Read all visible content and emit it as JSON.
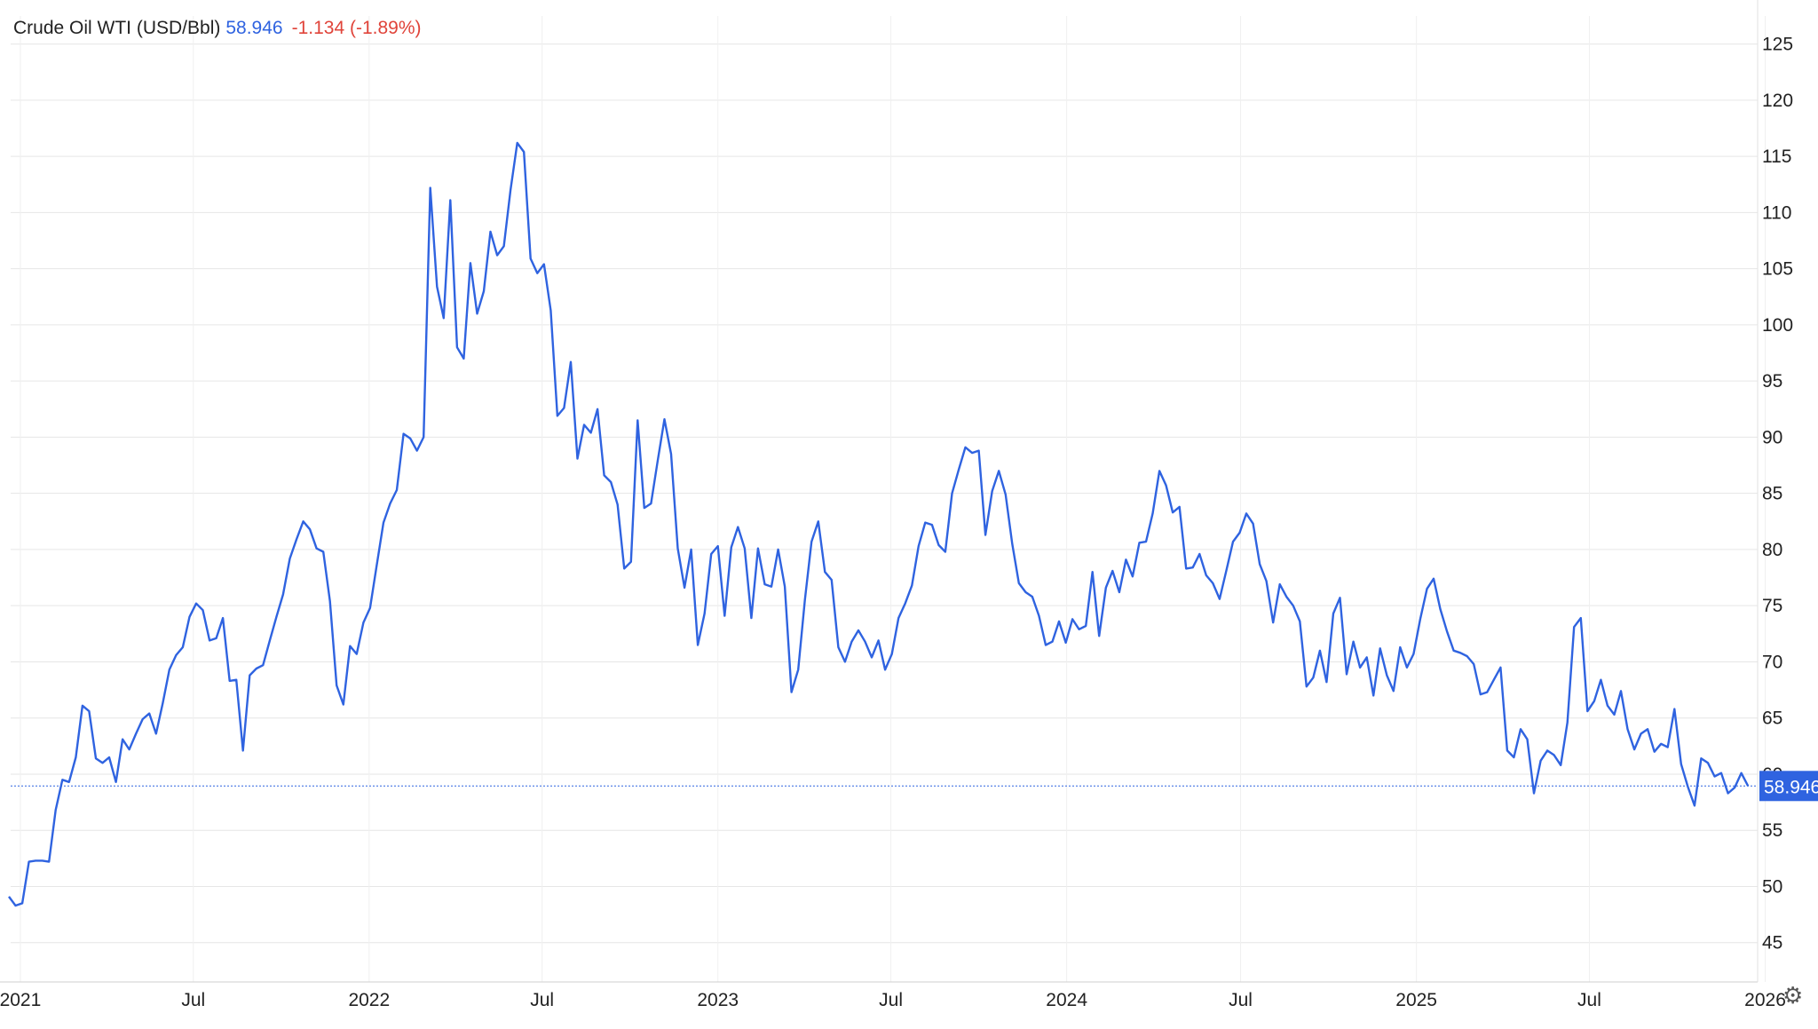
{
  "legend": {
    "name": "Crude Oil WTI (USD/Bbl)",
    "last": "58.946",
    "change": "-1.134 (-1.89%)"
  },
  "colors": {
    "series": "#2f63e0",
    "change_negative": "#e0443a",
    "grid": "#e6e6e6",
    "price_tag": "#2f63e0"
  },
  "icons": {
    "settings": "gear-icon"
  },
  "chart_data": {
    "type": "line",
    "title": "Crude Oil WTI (USD/Bbl)",
    "xlabel": "",
    "ylabel": "",
    "ylim": [
      41.5,
      127.5
    ],
    "xlim": [
      "2020-12-20",
      "2026-01-07"
    ],
    "grid": true,
    "y_axis_position": "right",
    "y_ticks": [
      45,
      50,
      55,
      60,
      65,
      70,
      75,
      80,
      85,
      90,
      95,
      100,
      105,
      110,
      115,
      120,
      125
    ],
    "x_ticks": [
      {
        "date": "2021-01-01",
        "label": "2021"
      },
      {
        "date": "2021-07-01",
        "label": "Jul"
      },
      {
        "date": "2022-01-01",
        "label": "2022"
      },
      {
        "date": "2022-07-01",
        "label": "Jul"
      },
      {
        "date": "2023-01-01",
        "label": "2023"
      },
      {
        "date": "2023-07-01",
        "label": "Jul"
      },
      {
        "date": "2024-01-01",
        "label": "2024"
      },
      {
        "date": "2024-07-01",
        "label": "Jul"
      },
      {
        "date": "2025-01-01",
        "label": "2025"
      },
      {
        "date": "2025-07-01",
        "label": "Jul"
      },
      {
        "date": "2026-01-01",
        "label": "2026"
      }
    ],
    "last_value": 58.946,
    "last_value_label": "58.946",
    "series": [
      {
        "name": "Crude Oil WTI (USD/Bbl)",
        "points": [
          [
            "2020-12-20",
            49.1
          ],
          [
            "2020-12-27",
            48.3
          ],
          [
            "2021-01-03",
            48.5
          ],
          [
            "2021-01-10",
            52.2
          ],
          [
            "2021-01-17",
            52.3
          ],
          [
            "2021-01-24",
            52.3
          ],
          [
            "2021-01-31",
            52.2
          ],
          [
            "2021-02-07",
            56.8
          ],
          [
            "2021-02-14",
            59.5
          ],
          [
            "2021-02-21",
            59.3
          ],
          [
            "2021-02-28",
            61.5
          ],
          [
            "2021-03-07",
            66.1
          ],
          [
            "2021-03-14",
            65.6
          ],
          [
            "2021-03-21",
            61.4
          ],
          [
            "2021-03-28",
            61.0
          ],
          [
            "2021-04-04",
            61.5
          ],
          [
            "2021-04-11",
            59.3
          ],
          [
            "2021-04-18",
            63.1
          ],
          [
            "2021-04-25",
            62.2
          ],
          [
            "2021-05-02",
            63.6
          ],
          [
            "2021-05-09",
            64.9
          ],
          [
            "2021-05-16",
            65.4
          ],
          [
            "2021-05-23",
            63.6
          ],
          [
            "2021-05-30",
            66.3
          ],
          [
            "2021-06-06",
            69.3
          ],
          [
            "2021-06-13",
            70.6
          ],
          [
            "2021-06-20",
            71.3
          ],
          [
            "2021-06-27",
            74.0
          ],
          [
            "2021-07-04",
            75.2
          ],
          [
            "2021-07-11",
            74.6
          ],
          [
            "2021-07-18",
            71.9
          ],
          [
            "2021-07-25",
            72.1
          ],
          [
            "2021-08-01",
            73.9
          ],
          [
            "2021-08-08",
            68.3
          ],
          [
            "2021-08-15",
            68.4
          ],
          [
            "2021-08-22",
            62.1
          ],
          [
            "2021-08-29",
            68.8
          ],
          [
            "2021-09-05",
            69.4
          ],
          [
            "2021-09-12",
            69.7
          ],
          [
            "2021-09-19",
            71.9
          ],
          [
            "2021-09-26",
            74.0
          ],
          [
            "2021-10-03",
            76.0
          ],
          [
            "2021-10-10",
            79.2
          ],
          [
            "2021-10-17",
            80.9
          ],
          [
            "2021-10-24",
            82.5
          ],
          [
            "2021-10-31",
            81.8
          ],
          [
            "2021-11-07",
            80.1
          ],
          [
            "2021-11-14",
            79.8
          ],
          [
            "2021-11-21",
            75.4
          ],
          [
            "2021-11-28",
            67.9
          ],
          [
            "2021-12-05",
            66.2
          ],
          [
            "2021-12-12",
            71.4
          ],
          [
            "2021-12-19",
            70.7
          ],
          [
            "2021-12-26",
            73.5
          ],
          [
            "2022-01-02",
            74.8
          ],
          [
            "2022-01-09",
            78.6
          ],
          [
            "2022-01-16",
            82.4
          ],
          [
            "2022-01-23",
            84.1
          ],
          [
            "2022-01-30",
            85.3
          ],
          [
            "2022-02-06",
            90.3
          ],
          [
            "2022-02-13",
            89.9
          ],
          [
            "2022-02-20",
            88.8
          ],
          [
            "2022-02-27",
            90.0
          ],
          [
            "2022-03-06",
            112.2
          ],
          [
            "2022-03-13",
            103.4
          ],
          [
            "2022-03-20",
            100.6
          ],
          [
            "2022-03-27",
            111.1
          ],
          [
            "2022-04-03",
            98.0
          ],
          [
            "2022-04-10",
            97.0
          ],
          [
            "2022-04-17",
            105.5
          ],
          [
            "2022-04-24",
            101.0
          ],
          [
            "2022-05-01",
            103.0
          ],
          [
            "2022-05-08",
            108.3
          ],
          [
            "2022-05-15",
            106.2
          ],
          [
            "2022-05-22",
            107.0
          ],
          [
            "2022-05-29",
            112.0
          ],
          [
            "2022-06-05",
            116.2
          ],
          [
            "2022-06-12",
            115.4
          ],
          [
            "2022-06-19",
            105.9
          ],
          [
            "2022-06-26",
            104.6
          ],
          [
            "2022-07-03",
            105.4
          ],
          [
            "2022-07-10",
            101.3
          ],
          [
            "2022-07-17",
            91.9
          ],
          [
            "2022-07-24",
            92.6
          ],
          [
            "2022-07-31",
            96.7
          ],
          [
            "2022-08-07",
            88.1
          ],
          [
            "2022-08-14",
            91.1
          ],
          [
            "2022-08-21",
            90.4
          ],
          [
            "2022-08-28",
            92.5
          ],
          [
            "2022-09-04",
            86.6
          ],
          [
            "2022-09-11",
            86.0
          ],
          [
            "2022-09-18",
            84.0
          ],
          [
            "2022-09-25",
            78.3
          ],
          [
            "2022-10-02",
            78.9
          ],
          [
            "2022-10-09",
            91.5
          ],
          [
            "2022-10-16",
            83.7
          ],
          [
            "2022-10-23",
            84.1
          ],
          [
            "2022-10-30",
            87.9
          ],
          [
            "2022-11-06",
            91.6
          ],
          [
            "2022-11-13",
            88.5
          ],
          [
            "2022-11-20",
            80.1
          ],
          [
            "2022-11-27",
            76.6
          ],
          [
            "2022-12-04",
            80.0
          ],
          [
            "2022-12-11",
            71.5
          ],
          [
            "2022-12-18",
            74.3
          ],
          [
            "2022-12-25",
            79.6
          ],
          [
            "2023-01-01",
            80.3
          ],
          [
            "2023-01-08",
            74.1
          ],
          [
            "2023-01-15",
            80.2
          ],
          [
            "2023-01-22",
            82.0
          ],
          [
            "2023-01-29",
            80.1
          ],
          [
            "2023-02-05",
            73.9
          ],
          [
            "2023-02-12",
            80.1
          ],
          [
            "2023-02-19",
            76.9
          ],
          [
            "2023-02-26",
            76.7
          ],
          [
            "2023-03-05",
            80.0
          ],
          [
            "2023-03-12",
            76.7
          ],
          [
            "2023-03-19",
            67.3
          ],
          [
            "2023-03-26",
            69.3
          ],
          [
            "2023-04-02",
            75.5
          ],
          [
            "2023-04-09",
            80.7
          ],
          [
            "2023-04-16",
            82.5
          ],
          [
            "2023-04-23",
            78.0
          ],
          [
            "2023-04-30",
            77.3
          ],
          [
            "2023-05-07",
            71.3
          ],
          [
            "2023-05-14",
            70.0
          ],
          [
            "2023-05-21",
            71.8
          ],
          [
            "2023-05-28",
            72.8
          ],
          [
            "2023-06-04",
            71.8
          ],
          [
            "2023-06-11",
            70.4
          ],
          [
            "2023-06-18",
            71.9
          ],
          [
            "2023-06-25",
            69.3
          ],
          [
            "2023-07-02",
            70.7
          ],
          [
            "2023-07-09",
            73.9
          ],
          [
            "2023-07-16",
            75.2
          ],
          [
            "2023-07-23",
            76.8
          ],
          [
            "2023-07-30",
            80.3
          ],
          [
            "2023-08-06",
            82.4
          ],
          [
            "2023-08-13",
            82.2
          ],
          [
            "2023-08-20",
            80.4
          ],
          [
            "2023-08-27",
            79.8
          ],
          [
            "2023-09-03",
            85.0
          ],
          [
            "2023-09-10",
            87.1
          ],
          [
            "2023-09-17",
            89.1
          ],
          [
            "2023-09-24",
            88.6
          ],
          [
            "2023-10-01",
            88.8
          ],
          [
            "2023-10-08",
            81.3
          ],
          [
            "2023-10-15",
            85.2
          ],
          [
            "2023-10-22",
            87.0
          ],
          [
            "2023-10-29",
            84.9
          ],
          [
            "2023-11-05",
            80.5
          ],
          [
            "2023-11-12",
            77.0
          ],
          [
            "2023-11-19",
            76.2
          ],
          [
            "2023-11-26",
            75.8
          ],
          [
            "2023-12-03",
            74.1
          ],
          [
            "2023-12-10",
            71.5
          ],
          [
            "2023-12-17",
            71.8
          ],
          [
            "2023-12-24",
            73.6
          ],
          [
            "2023-12-31",
            71.7
          ],
          [
            "2024-01-07",
            73.8
          ],
          [
            "2024-01-14",
            72.9
          ],
          [
            "2024-01-21",
            73.2
          ],
          [
            "2024-01-28",
            78.0
          ],
          [
            "2024-02-04",
            72.3
          ],
          [
            "2024-02-11",
            76.6
          ],
          [
            "2024-02-18",
            78.1
          ],
          [
            "2024-02-25",
            76.2
          ],
          [
            "2024-03-03",
            79.1
          ],
          [
            "2024-03-10",
            77.6
          ],
          [
            "2024-03-17",
            80.6
          ],
          [
            "2024-03-24",
            80.7
          ],
          [
            "2024-03-31",
            83.2
          ],
          [
            "2024-04-07",
            87.0
          ],
          [
            "2024-04-14",
            85.7
          ],
          [
            "2024-04-21",
            83.3
          ],
          [
            "2024-04-28",
            83.8
          ],
          [
            "2024-05-05",
            78.3
          ],
          [
            "2024-05-12",
            78.4
          ],
          [
            "2024-05-19",
            79.6
          ],
          [
            "2024-05-26",
            77.7
          ],
          [
            "2024-06-02",
            77.0
          ],
          [
            "2024-06-09",
            75.6
          ],
          [
            "2024-06-16",
            78.1
          ],
          [
            "2024-06-23",
            80.7
          ],
          [
            "2024-06-30",
            81.5
          ],
          [
            "2024-07-07",
            83.2
          ],
          [
            "2024-07-14",
            82.3
          ],
          [
            "2024-07-21",
            78.7
          ],
          [
            "2024-07-28",
            77.2
          ],
          [
            "2024-08-04",
            73.5
          ],
          [
            "2024-08-11",
            76.9
          ],
          [
            "2024-08-18",
            75.8
          ],
          [
            "2024-08-25",
            75.0
          ],
          [
            "2024-09-01",
            73.6
          ],
          [
            "2024-09-08",
            67.8
          ],
          [
            "2024-09-15",
            68.6
          ],
          [
            "2024-09-22",
            71.0
          ],
          [
            "2024-09-29",
            68.2
          ],
          [
            "2024-10-06",
            74.3
          ],
          [
            "2024-10-13",
            75.7
          ],
          [
            "2024-10-20",
            68.9
          ],
          [
            "2024-10-27",
            71.8
          ],
          [
            "2024-11-03",
            69.5
          ],
          [
            "2024-11-10",
            70.4
          ],
          [
            "2024-11-17",
            67.0
          ],
          [
            "2024-11-24",
            71.2
          ],
          [
            "2024-12-01",
            68.8
          ],
          [
            "2024-12-08",
            67.4
          ],
          [
            "2024-12-15",
            71.3
          ],
          [
            "2024-12-22",
            69.5
          ],
          [
            "2024-12-29",
            70.7
          ],
          [
            "2025-01-05",
            73.8
          ],
          [
            "2025-01-12",
            76.5
          ],
          [
            "2025-01-19",
            77.4
          ],
          [
            "2025-01-26",
            74.7
          ],
          [
            "2025-02-02",
            72.7
          ],
          [
            "2025-02-09",
            71.0
          ],
          [
            "2025-02-16",
            70.8
          ],
          [
            "2025-02-23",
            70.5
          ],
          [
            "2025-03-02",
            69.8
          ],
          [
            "2025-03-09",
            67.1
          ],
          [
            "2025-03-16",
            67.3
          ],
          [
            "2025-03-23",
            68.4
          ],
          [
            "2025-03-30",
            69.5
          ],
          [
            "2025-04-06",
            62.1
          ],
          [
            "2025-04-13",
            61.5
          ],
          [
            "2025-04-20",
            64.0
          ],
          [
            "2025-04-27",
            63.1
          ],
          [
            "2025-05-04",
            58.3
          ],
          [
            "2025-05-11",
            61.2
          ],
          [
            "2025-05-18",
            62.1
          ],
          [
            "2025-05-25",
            61.7
          ],
          [
            "2025-06-01",
            60.8
          ],
          [
            "2025-06-08",
            64.6
          ],
          [
            "2025-06-15",
            73.1
          ],
          [
            "2025-06-22",
            73.9
          ],
          [
            "2025-06-29",
            65.6
          ],
          [
            "2025-07-06",
            66.5
          ],
          [
            "2025-07-13",
            68.4
          ],
          [
            "2025-07-20",
            66.1
          ],
          [
            "2025-07-27",
            65.3
          ],
          [
            "2025-08-03",
            67.4
          ],
          [
            "2025-08-10",
            64.0
          ],
          [
            "2025-08-17",
            62.2
          ],
          [
            "2025-08-24",
            63.6
          ],
          [
            "2025-08-31",
            64.0
          ],
          [
            "2025-09-07",
            62.0
          ],
          [
            "2025-09-14",
            62.7
          ],
          [
            "2025-09-21",
            62.4
          ],
          [
            "2025-09-28",
            65.8
          ],
          [
            "2025-10-05",
            60.9
          ],
          [
            "2025-10-12",
            58.9
          ],
          [
            "2025-10-19",
            57.2
          ],
          [
            "2025-10-26",
            61.4
          ],
          [
            "2025-11-02",
            61.0
          ],
          [
            "2025-11-09",
            59.8
          ],
          [
            "2025-11-16",
            60.1
          ],
          [
            "2025-11-23",
            58.3
          ],
          [
            "2025-11-30",
            58.8
          ],
          [
            "2025-12-07",
            60.1
          ],
          [
            "2025-12-14",
            58.946
          ]
        ]
      }
    ]
  }
}
